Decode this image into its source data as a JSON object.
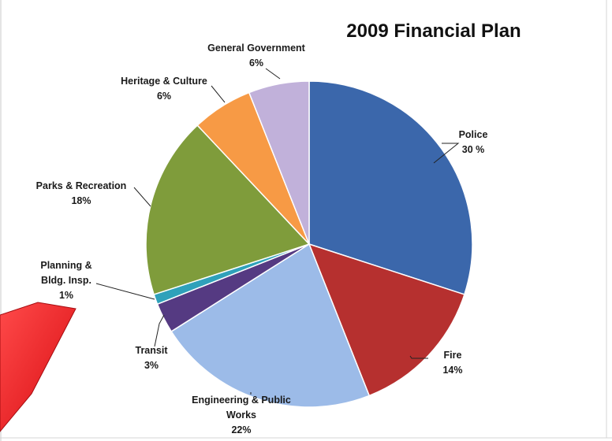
{
  "chart_data": {
    "type": "pie",
    "title": "2009 Financial Plan",
    "slices": [
      {
        "label_lines": [
          "Police"
        ],
        "percent_text": "30 %",
        "value": 30,
        "color": "#3b67ab"
      },
      {
        "label_lines": [
          "Fire"
        ],
        "percent_text": "14%",
        "value": 14,
        "color": "#b6302f"
      },
      {
        "label_lines": [
          "Engineering & Public",
          "Works"
        ],
        "percent_text": "22%",
        "value": 22,
        "color": "#9cbbe8"
      },
      {
        "label_lines": [
          "Transit"
        ],
        "percent_text": "3%",
        "value": 3,
        "color": "#553a82"
      },
      {
        "label_lines": [
          "Planning &",
          "Bldg. Insp."
        ],
        "percent_text": "1%",
        "value": 1,
        "color": "#2fa1ba"
      },
      {
        "label_lines": [
          "Parks & Recreation"
        ],
        "percent_text": "18%",
        "value": 18,
        "color": "#7f9c3b"
      },
      {
        "label_lines": [
          "Heritage & Culture"
        ],
        "percent_text": "6%",
        "value": 6,
        "color": "#f79a45"
      },
      {
        "label_lines": [
          "General Government"
        ],
        "percent_text": "6%",
        "value": 6,
        "color": "#c1b1da"
      }
    ],
    "legend": "none",
    "decoration": {
      "arrow_color": "#e8161a"
    }
  }
}
